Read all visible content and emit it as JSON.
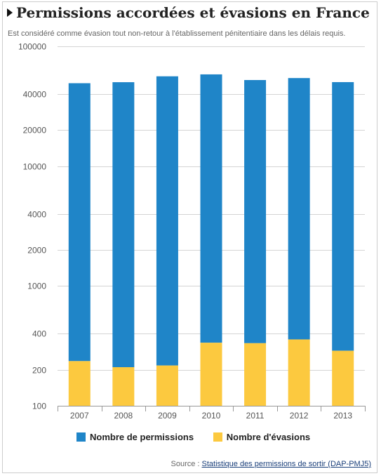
{
  "header": {
    "title": "Permissions accordées et évasions en France",
    "subtitle": "Est considéré comme évasion tout non-retour à l'établissement pénitentiaire dans les délais requis."
  },
  "source": {
    "prefix": "Source :",
    "link_text": "Statistique des permissions de sortir (DAP-PMJ5)"
  },
  "colors": {
    "permissions": "#1f85c8",
    "evasions": "#fcc93f",
    "grid": "#d4d4d4",
    "axis_text": "#555555"
  },
  "chart_data": {
    "type": "bar",
    "stacked": true,
    "yscale": "log",
    "categories": [
      "2007",
      "2008",
      "2009",
      "2010",
      "2011",
      "2012",
      "2013"
    ],
    "series": [
      {
        "name": "Nombre d'évasions",
        "values": [
          236,
          210,
          217,
          336,
          333,
          358,
          288
        ]
      },
      {
        "name": "Nombre de permissions",
        "values": [
          49000,
          50000,
          56000,
          58000,
          52000,
          54000,
          50000
        ]
      }
    ],
    "yticks": [
      100,
      200,
      400,
      1000,
      2000,
      4000,
      10000,
      20000,
      40000,
      100000
    ],
    "ylim": [
      100,
      100000
    ],
    "legend": [
      "Nombre de permissions",
      "Nombre d'évasions"
    ],
    "legend_position": "bottom",
    "grid": true
  }
}
